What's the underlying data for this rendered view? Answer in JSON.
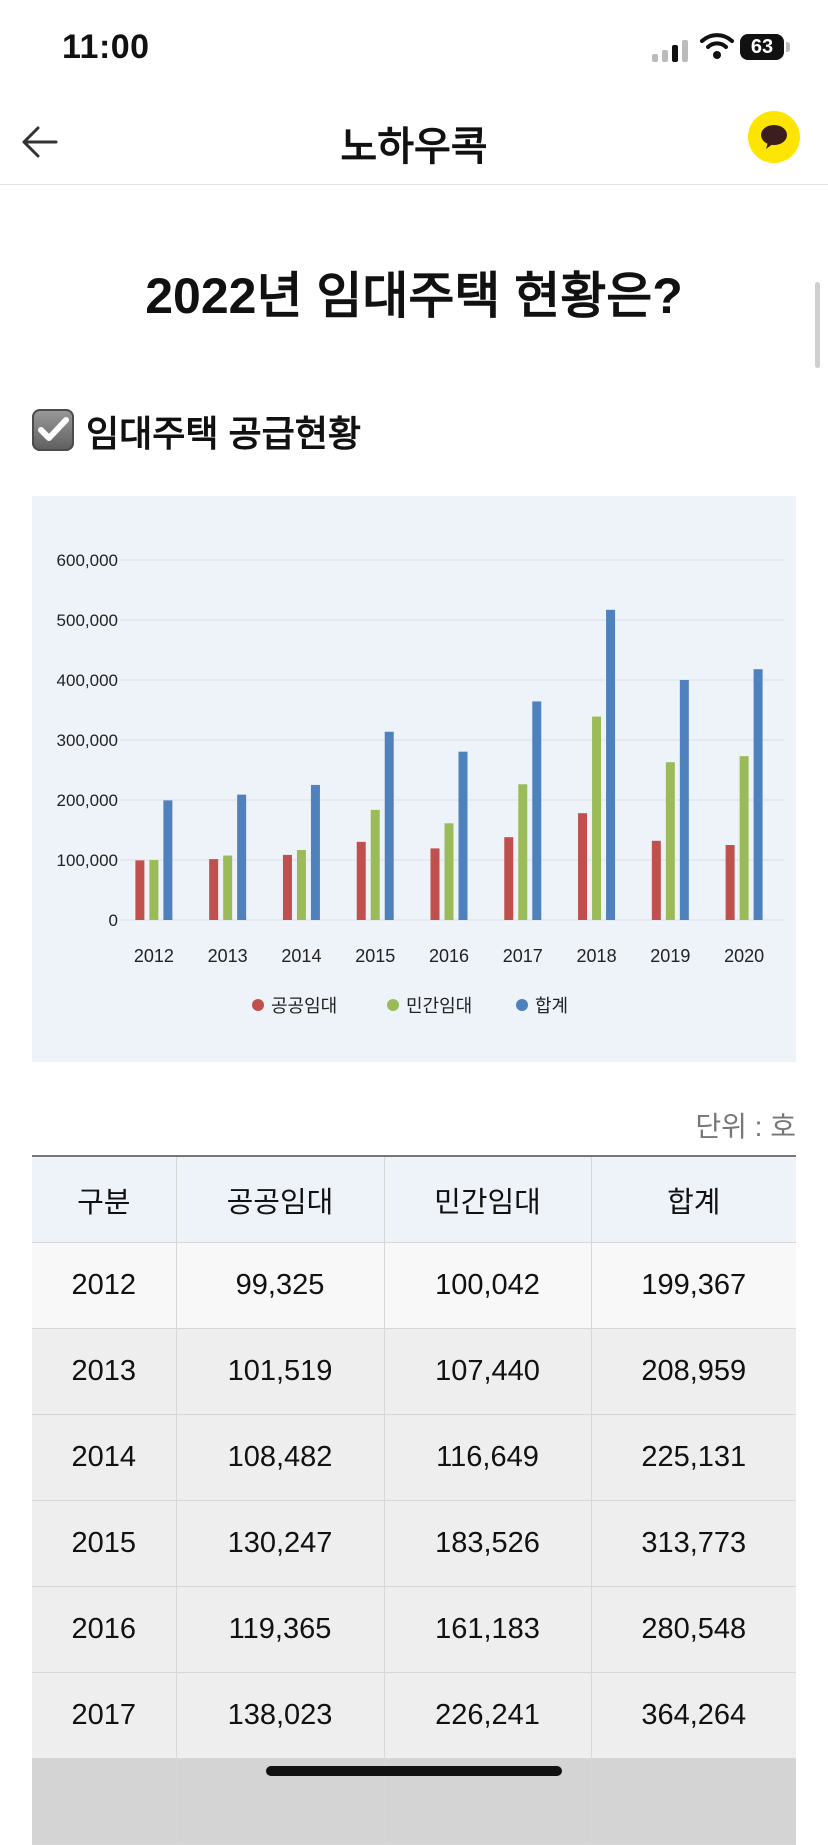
{
  "status_bar": {
    "time": "11:00",
    "battery": "63"
  },
  "header": {
    "title": "노하우콕"
  },
  "page": {
    "title": "2022년 임대주택 현황은?"
  },
  "section": {
    "title": "임대주택 공급현황"
  },
  "chart_data": {
    "type": "bar",
    "categories": [
      "2012",
      "2013",
      "2014",
      "2015",
      "2016",
      "2017",
      "2018",
      "2019",
      "2020"
    ],
    "series": [
      {
        "name": "공공임대",
        "color": "#c0504d",
        "values": [
          99325,
          101519,
          108482,
          130247,
          119365,
          138023,
          178000,
          132000,
          125000
        ]
      },
      {
        "name": "민간임대",
        "color": "#9bbb59",
        "values": [
          100042,
          107440,
          116649,
          183526,
          161183,
          226241,
          339000,
          263000,
          273000
        ]
      },
      {
        "name": "합계",
        "color": "#4f81bd",
        "values": [
          199367,
          208959,
          225131,
          313773,
          280548,
          364264,
          517000,
          400000,
          418000
        ]
      }
    ],
    "y_ticks": [
      "600,000",
      "500,000",
      "400,000",
      "300,000",
      "200,000",
      "100,000",
      "0"
    ],
    "ylim": [
      0,
      600000
    ],
    "grid": true,
    "legend": "bottom-center"
  },
  "table": {
    "unit": "단위 : 호",
    "headers": [
      "구분",
      "공공임대",
      "민간임대",
      "합계"
    ],
    "rows": [
      [
        "2012",
        "99,325",
        "100,042",
        "199,367"
      ],
      [
        "2013",
        "101,519",
        "107,440",
        "208,959"
      ],
      [
        "2014",
        "108,482",
        "116,649",
        "225,131"
      ],
      [
        "2015",
        "130,247",
        "183,526",
        "313,773"
      ],
      [
        "2016",
        "119,365",
        "161,183",
        "280,548"
      ],
      [
        "2017",
        "138,023",
        "226,241",
        "364,264"
      ]
    ]
  }
}
